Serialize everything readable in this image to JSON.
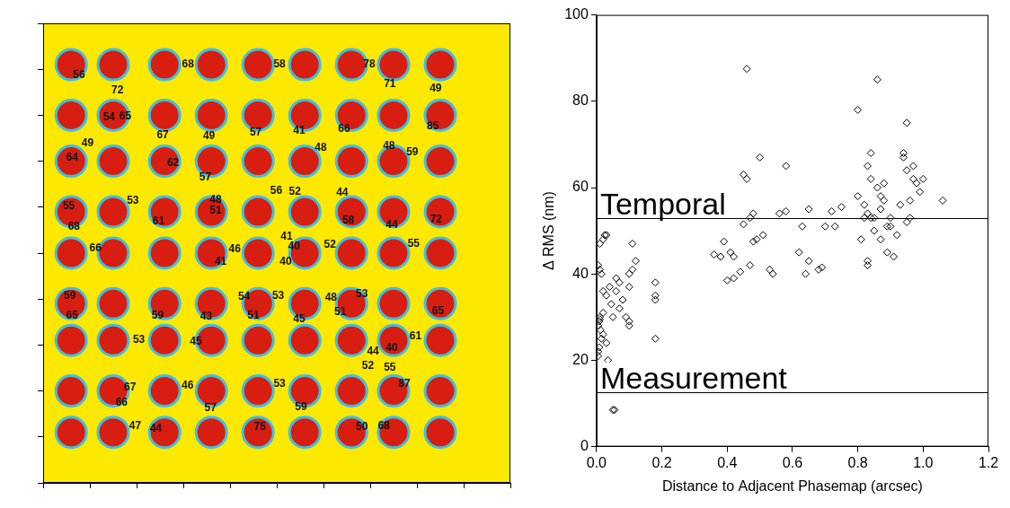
{
  "chart_data": [
    {
      "type": "scatter",
      "xlim": [
        0,
        100
      ],
      "ylim": [
        0,
        100
      ],
      "xticks": [
        0,
        10,
        20,
        30,
        40,
        50,
        60,
        70,
        80,
        90,
        100
      ],
      "yticks": [
        0,
        10,
        20,
        30,
        40,
        50,
        60,
        70,
        80,
        90,
        100
      ],
      "tick_labels": false,
      "grid": false,
      "marker": "circle",
      "color": "#d81e10",
      "x": [
        6,
        15,
        26,
        36,
        46,
        56,
        66,
        75,
        85,
        6,
        15,
        26,
        36,
        46,
        56,
        66,
        75,
        85,
        6,
        15,
        26,
        36,
        46,
        56,
        66,
        75,
        85,
        6,
        15,
        26,
        36,
        46,
        56,
        66,
        75,
        85,
        6,
        15,
        26,
        36,
        46,
        56,
        66,
        75,
        85,
        6,
        15,
        26,
        36,
        46,
        56,
        66,
        75,
        85,
        6,
        15,
        26,
        36,
        46,
        56,
        66,
        75,
        85,
        6,
        15,
        26,
        36,
        46,
        56,
        66,
        75,
        85,
        6,
        15,
        26,
        36,
        46,
        56,
        66,
        75,
        85
      ],
      "y": [
        91,
        91,
        91,
        91,
        91,
        91,
        91,
        91,
        91,
        80,
        80,
        80,
        80,
        80,
        80,
        80,
        80,
        80,
        70,
        70,
        70,
        70,
        70,
        70,
        70,
        70,
        70,
        59,
        59,
        59,
        59,
        59,
        59,
        59,
        59,
        59,
        50,
        50,
        50,
        50,
        50,
        50,
        50,
        50,
        50,
        39,
        39,
        39,
        39,
        39,
        39,
        39,
        39,
        39,
        31,
        31,
        31,
        31,
        31,
        31,
        31,
        31,
        31,
        20,
        20,
        20,
        20,
        20,
        20,
        20,
        20,
        20,
        11,
        11,
        11,
        11,
        11,
        11,
        11,
        11,
        11
      ],
      "annotations": [
        {
          "text": "56",
          "x": 7.7,
          "y": 88.7
        },
        {
          "text": "68",
          "x": 31,
          "y": 91
        },
        {
          "text": "58",
          "x": 50.6,
          "y": 91
        },
        {
          "text": "78",
          "x": 69.8,
          "y": 91
        },
        {
          "text": "72",
          "x": 15.9,
          "y": 85.5
        },
        {
          "text": "71",
          "x": 74.2,
          "y": 86.8
        },
        {
          "text": "49",
          "x": 84,
          "y": 85.9
        },
        {
          "text": "54",
          "x": 14.1,
          "y": 79.6
        },
        {
          "text": "65",
          "x": 17.6,
          "y": 79.8
        },
        {
          "text": "67",
          "x": 25.6,
          "y": 75.7
        },
        {
          "text": "49",
          "x": 35.5,
          "y": 75.5
        },
        {
          "text": "57",
          "x": 45.5,
          "y": 76.3
        },
        {
          "text": "41",
          "x": 54.8,
          "y": 76.6
        },
        {
          "text": "66",
          "x": 64.4,
          "y": 77
        },
        {
          "text": "85",
          "x": 83.4,
          "y": 77.6
        },
        {
          "text": "49",
          "x": 9.5,
          "y": 73.8
        },
        {
          "text": "48",
          "x": 59.4,
          "y": 72.9
        },
        {
          "text": "48",
          "x": 74,
          "y": 73.3
        },
        {
          "text": "59",
          "x": 79,
          "y": 72
        },
        {
          "text": "64",
          "x": 6.2,
          "y": 70.7
        },
        {
          "text": "62",
          "x": 27.8,
          "y": 69.6
        },
        {
          "text": "57",
          "x": 34.7,
          "y": 66.4
        },
        {
          "text": "56",
          "x": 49.9,
          "y": 63.5
        },
        {
          "text": "52",
          "x": 53.9,
          "y": 63.3
        },
        {
          "text": "44",
          "x": 64,
          "y": 63.1
        },
        {
          "text": "53",
          "x": 19.2,
          "y": 61.4
        },
        {
          "text": "55",
          "x": 5.5,
          "y": 60.3
        },
        {
          "text": "48",
          "x": 36.9,
          "y": 61.6
        },
        {
          "text": "51",
          "x": 36.9,
          "y": 59.2
        },
        {
          "text": "61",
          "x": 24.7,
          "y": 56.8
        },
        {
          "text": "58",
          "x": 65.3,
          "y": 57
        },
        {
          "text": "44",
          "x": 74.6,
          "y": 56.2
        },
        {
          "text": "72",
          "x": 84.1,
          "y": 57.3
        },
        {
          "text": "68",
          "x": 6.6,
          "y": 55.8
        },
        {
          "text": "41",
          "x": 52.1,
          "y": 53.6
        },
        {
          "text": "40",
          "x": 53.7,
          "y": 51.4
        },
        {
          "text": "52",
          "x": 61.4,
          "y": 51.9
        },
        {
          "text": "55",
          "x": 79.3,
          "y": 52.1
        },
        {
          "text": "66",
          "x": 11.2,
          "y": 51
        },
        {
          "text": "46",
          "x": 41,
          "y": 50.8
        },
        {
          "text": "41",
          "x": 38,
          "y": 48.2
        },
        {
          "text": "40",
          "x": 51.9,
          "y": 48.2
        },
        {
          "text": "59",
          "x": 5.7,
          "y": 40.6
        },
        {
          "text": "54",
          "x": 43,
          "y": 40.4
        },
        {
          "text": "53",
          "x": 50.3,
          "y": 40.6
        },
        {
          "text": "48",
          "x": 61.6,
          "y": 40.3
        },
        {
          "text": "53",
          "x": 68.2,
          "y": 41
        },
        {
          "text": "65",
          "x": 6.2,
          "y": 36.4
        },
        {
          "text": "59",
          "x": 24.5,
          "y": 36.4
        },
        {
          "text": "43",
          "x": 34.9,
          "y": 36.2
        },
        {
          "text": "51",
          "x": 45,
          "y": 36.4
        },
        {
          "text": "51",
          "x": 63.6,
          "y": 37.1
        },
        {
          "text": "65",
          "x": 84.5,
          "y": 37.3
        },
        {
          "text": "45",
          "x": 54.8,
          "y": 35.6
        },
        {
          "text": "53",
          "x": 20.5,
          "y": 31.2
        },
        {
          "text": "45",
          "x": 32.7,
          "y": 30.8
        },
        {
          "text": "61",
          "x": 79.7,
          "y": 31.9
        },
        {
          "text": "40",
          "x": 74.6,
          "y": 29.3
        },
        {
          "text": "44",
          "x": 70.6,
          "y": 28.6
        },
        {
          "text": "52",
          "x": 69.5,
          "y": 25.4
        },
        {
          "text": "55",
          "x": 74.2,
          "y": 25
        },
        {
          "text": "87",
          "x": 77.3,
          "y": 21.5
        },
        {
          "text": "67",
          "x": 18.6,
          "y": 20.8
        },
        {
          "text": "46",
          "x": 30.9,
          "y": 21.2
        },
        {
          "text": "53",
          "x": 50.6,
          "y": 21.5
        },
        {
          "text": "66",
          "x": 16.8,
          "y": 17.4
        },
        {
          "text": "57",
          "x": 35.8,
          "y": 16.3
        },
        {
          "text": "59",
          "x": 55.2,
          "y": 16.5
        },
        {
          "text": "47",
          "x": 19.7,
          "y": 12.4
        },
        {
          "text": "44",
          "x": 24.1,
          "y": 11.7
        },
        {
          "text": "75",
          "x": 46.4,
          "y": 12.2
        },
        {
          "text": "50",
          "x": 68.2,
          "y": 12.2
        },
        {
          "text": "68",
          "x": 72.9,
          "y": 12.4
        }
      ]
    },
    {
      "type": "scatter",
      "x_label": "Distance to Adjacent Phasemap (arcsec)",
      "y_label": "Δ RMS (nm)",
      "xlim": [
        0,
        1.2
      ],
      "ylim": [
        0,
        100
      ],
      "xticks": [
        {
          "value": 0,
          "label": "0.0"
        },
        0.2,
        0.4,
        0.6,
        0.8,
        {
          "value": 1,
          "label": "1.0"
        },
        1.2
      ],
      "yticks": [
        0,
        20,
        40,
        60,
        80,
        100
      ],
      "grid": false,
      "marker": "diamond",
      "color": "#000000",
      "reference_lines": [
        {
          "value": 53,
          "label": "Temporal"
        },
        {
          "value": 12.5,
          "label": "Measurement"
        }
      ],
      "x": [
        0.005,
        0.005,
        0.008,
        0.005,
        0.008,
        0.01,
        0.01,
        0.012,
        0.015,
        0.02,
        0.02,
        0.005,
        0.01,
        0.015,
        0.02,
        0.025,
        0.03,
        0.01,
        0.02,
        0.03,
        0.04,
        0.045,
        0.05,
        0.055,
        0.03,
        0.035,
        0.05,
        0.06,
        0.06,
        0.07,
        0.07,
        0.08,
        0.09,
        0.1,
        0.1,
        0.1,
        0.1,
        0.11,
        0.11,
        0.12,
        0.18,
        0.18,
        0.18,
        0.18,
        0.36,
        0.38,
        0.39,
        0.4,
        0.41,
        0.42,
        0.42,
        0.44,
        0.45,
        0.45,
        0.46,
        0.46,
        0.47,
        0.47,
        0.48,
        0.48,
        0.49,
        0.5,
        0.51,
        0.53,
        0.54,
        0.56,
        0.58,
        0.58,
        0.62,
        0.63,
        0.64,
        0.65,
        0.65,
        0.68,
        0.69,
        0.7,
        0.72,
        0.73,
        0.75,
        0.8,
        0.8,
        0.81,
        0.82,
        0.82,
        0.83,
        0.83,
        0.83,
        0.83,
        0.84,
        0.84,
        0.85,
        0.85,
        0.86,
        0.86,
        0.87,
        0.87,
        0.87,
        0.88,
        0.88,
        0.89,
        0.89,
        0.9,
        0.9,
        0.91,
        0.92,
        0.94,
        0.94,
        0.95,
        0.95,
        0.96,
        0.96,
        0.97,
        0.97,
        0.98,
        0.99,
        1.0,
        1.06,
        0.95,
        0.93,
        0.84
      ],
      "y": [
        22,
        21,
        23,
        28,
        29,
        29.5,
        30,
        27,
        25,
        26,
        31,
        42,
        41,
        40,
        48,
        49,
        49,
        47,
        36,
        35,
        37,
        33,
        8.5,
        8.5,
        24,
        20,
        30,
        39,
        36,
        38,
        32,
        34,
        30,
        28,
        29,
        37,
        40,
        47,
        41,
        43,
        25,
        35,
        34,
        38,
        44.5,
        44,
        47.5,
        38.5,
        45,
        44,
        39,
        40.5,
        51.5,
        63,
        87.5,
        62,
        42,
        53,
        54,
        47.5,
        48,
        67,
        49,
        41,
        40,
        54,
        54.5,
        65,
        45,
        51,
        40,
        55,
        43,
        41,
        41.5,
        51,
        54.5,
        51,
        55.5,
        78,
        58,
        48,
        53,
        56,
        54,
        43,
        42,
        65,
        62,
        68,
        53,
        50,
        85,
        60,
        58,
        55,
        48,
        61,
        57,
        51,
        45,
        51,
        53,
        44,
        49,
        68,
        67,
        75,
        64,
        57,
        53,
        65,
        62,
        61,
        59,
        62,
        57,
        52,
        56,
        53
      ]
    }
  ]
}
